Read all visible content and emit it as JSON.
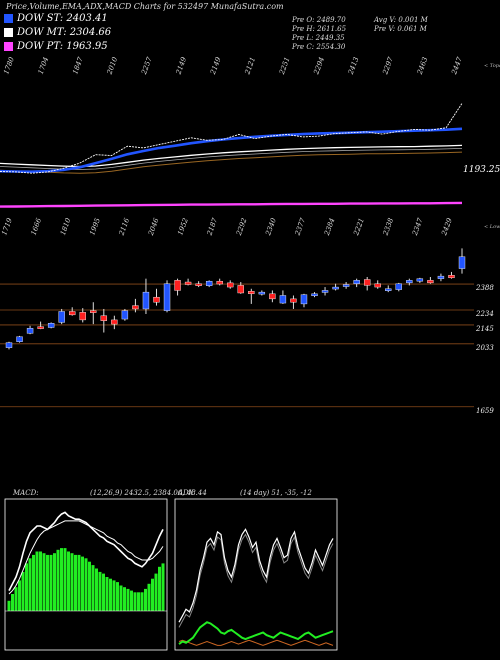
{
  "header": {
    "title": "Price,Volume,EMA,ADX,MACD Charts for 532497 MunafaSutra.com"
  },
  "legend": [
    {
      "label": "DOW ST: 2403.41",
      "color": "#2255ff"
    },
    {
      "label": "DOW MT: 2304.66",
      "color": "#ffffff"
    },
    {
      "label": "DOW PT: 1963.95",
      "color": "#ff44ff"
    }
  ],
  "info": {
    "col1": [
      "Pre   O: 2489.70",
      "Pre   H: 2611.65",
      "Pre   L: 2449.35",
      "Pre   C: 2554.30"
    ],
    "col2": [
      "Avg V: 0.001 M",
      "Pre   V: 0.061 M"
    ]
  },
  "colors": {
    "up": "#2255ff",
    "down": "#ff2020",
    "bg": "#000000",
    "macd_bar": "#22ee22",
    "adx_plus": "#22ee22",
    "adx_minus": "#cc6622",
    "gridline": "#8a4a1a"
  },
  "chart_data": [
    {
      "type": "line",
      "name": "ema-panel",
      "top_labels": [
        "1780",
        "1704",
        "1847",
        "2010",
        "2257",
        "2149",
        "2149",
        "2121",
        "2251",
        "2294",
        "2413",
        "2297",
        "2463",
        "2447"
      ],
      "right_label": "< Topa",
      "price_label": "1193.25",
      "series": [
        {
          "name": "DOW ST",
          "color": "#2255ff",
          "values": [
            2152,
            2150,
            2149,
            2152,
            2160,
            2175,
            2200,
            2225,
            2252,
            2272,
            2290,
            2303,
            2318,
            2330,
            2340,
            2348,
            2356,
            2362,
            2367,
            2372,
            2376,
            2378,
            2380,
            2383,
            2386,
            2389,
            2392,
            2395,
            2398,
            2403
          ]
        },
        {
          "name": "DOW MT",
          "color": "#ffffff",
          "values": [
            2198,
            2194,
            2190,
            2186,
            2182,
            2180,
            2183,
            2192,
            2205,
            2218,
            2228,
            2237,
            2246,
            2254,
            2261,
            2267,
            2272,
            2277,
            2282,
            2286,
            2289,
            2291,
            2293,
            2295,
            2296,
            2297,
            2298,
            2300,
            2302,
            2305
          ]
        },
        {
          "name": "DOW PT",
          "color": "#ff44ff",
          "values": [
            1942,
            1943,
            1944,
            1945,
            1946,
            1947,
            1948,
            1949,
            1950,
            1951,
            1952,
            1953,
            1954,
            1954,
            1955,
            1956,
            1956,
            1957,
            1958,
            1958,
            1959,
            1959,
            1960,
            1960,
            1961,
            1961,
            1962,
            1962,
            1963,
            1964
          ]
        }
      ],
      "close": [
        2150,
        2148,
        2140,
        2148,
        2170,
        2200,
        2250,
        2245,
        2300,
        2290,
        2310,
        2330,
        2350,
        2335,
        2340,
        2370,
        2345,
        2360,
        2370,
        2355,
        2360,
        2375,
        2380,
        2385,
        2372,
        2388,
        2400,
        2395,
        2410,
        2554
      ]
    },
    {
      "type": "candlestick",
      "name": "price-panel",
      "top_labels": [
        "1719",
        "1666",
        "1810",
        "1995",
        "2116",
        "2046",
        "1952",
        "2187",
        "2292",
        "2340",
        "2377",
        "2384",
        "2221",
        "2338",
        "2347",
        "2429"
      ],
      "right_label": "< Lowes",
      "levels": [
        2388,
        2234,
        2145,
        2033,
        1659
      ],
      "ylim": [
        1610,
        2620
      ],
      "candles": [
        {
          "o": 2010,
          "h": 2045,
          "l": 2000,
          "c": 2040
        },
        {
          "o": 2045,
          "h": 2080,
          "l": 2040,
          "c": 2075
        },
        {
          "o": 2095,
          "h": 2140,
          "l": 2090,
          "c": 2125
        },
        {
          "o": 2135,
          "h": 2165,
          "l": 2120,
          "c": 2130
        },
        {
          "o": 2130,
          "h": 2160,
          "l": 2125,
          "c": 2155
        },
        {
          "o": 2160,
          "h": 2240,
          "l": 2150,
          "c": 2225
        },
        {
          "o": 2225,
          "h": 2250,
          "l": 2200,
          "c": 2205
        },
        {
          "o": 2220,
          "h": 2245,
          "l": 2160,
          "c": 2175
        },
        {
          "o": 2230,
          "h": 2280,
          "l": 2150,
          "c": 2225
        },
        {
          "o": 2200,
          "h": 2240,
          "l": 2100,
          "c": 2170
        },
        {
          "o": 2175,
          "h": 2200,
          "l": 2120,
          "c": 2150
        },
        {
          "o": 2180,
          "h": 2240,
          "l": 2170,
          "c": 2230
        },
        {
          "o": 2260,
          "h": 2300,
          "l": 2220,
          "c": 2240
        },
        {
          "o": 2240,
          "h": 2420,
          "l": 2210,
          "c": 2340
        },
        {
          "o": 2310,
          "h": 2360,
          "l": 2260,
          "c": 2280
        },
        {
          "o": 2230,
          "h": 2410,
          "l": 2220,
          "c": 2390
        },
        {
          "o": 2410,
          "h": 2420,
          "l": 2320,
          "c": 2350
        },
        {
          "o": 2400,
          "h": 2420,
          "l": 2380,
          "c": 2385
        },
        {
          "o": 2390,
          "h": 2405,
          "l": 2370,
          "c": 2380
        },
        {
          "o": 2378,
          "h": 2410,
          "l": 2370,
          "c": 2405
        },
        {
          "o": 2405,
          "h": 2420,
          "l": 2380,
          "c": 2388
        },
        {
          "o": 2395,
          "h": 2410,
          "l": 2360,
          "c": 2370
        },
        {
          "o": 2380,
          "h": 2400,
          "l": 2330,
          "c": 2335
        },
        {
          "o": 2345,
          "h": 2360,
          "l": 2270,
          "c": 2330
        },
        {
          "o": 2335,
          "h": 2350,
          "l": 2320,
          "c": 2340
        },
        {
          "o": 2330,
          "h": 2350,
          "l": 2280,
          "c": 2300
        },
        {
          "o": 2275,
          "h": 2350,
          "l": 2270,
          "c": 2320
        },
        {
          "o": 2300,
          "h": 2320,
          "l": 2240,
          "c": 2280
        },
        {
          "o": 2270,
          "h": 2330,
          "l": 2250,
          "c": 2325
        },
        {
          "o": 2325,
          "h": 2340,
          "l": 2310,
          "c": 2330
        },
        {
          "o": 2345,
          "h": 2370,
          "l": 2320,
          "c": 2350
        },
        {
          "o": 2365,
          "h": 2390,
          "l": 2350,
          "c": 2370
        },
        {
          "o": 2375,
          "h": 2400,
          "l": 2360,
          "c": 2385
        },
        {
          "o": 2390,
          "h": 2420,
          "l": 2370,
          "c": 2410
        },
        {
          "o": 2415,
          "h": 2430,
          "l": 2350,
          "c": 2380
        },
        {
          "o": 2390,
          "h": 2410,
          "l": 2360,
          "c": 2370
        },
        {
          "o": 2350,
          "h": 2380,
          "l": 2340,
          "c": 2360
        },
        {
          "o": 2355,
          "h": 2395,
          "l": 2345,
          "c": 2390
        },
        {
          "o": 2395,
          "h": 2420,
          "l": 2380,
          "c": 2410
        },
        {
          "o": 2405,
          "h": 2425,
          "l": 2395,
          "c": 2420
        },
        {
          "o": 2410,
          "h": 2430,
          "l": 2390,
          "c": 2395
        },
        {
          "o": 2420,
          "h": 2450,
          "l": 2405,
          "c": 2435
        },
        {
          "o": 2440,
          "h": 2460,
          "l": 2420,
          "c": 2425
        },
        {
          "o": 2480,
          "h": 2600,
          "l": 2450,
          "c": 2550
        }
      ]
    },
    {
      "type": "bar",
      "name": "macd-panel",
      "title": "MACD:",
      "params": "(12,26,9) 2432.5, 2384.06, 48.44",
      "macd": [
        12,
        16,
        20,
        26,
        34,
        41,
        46,
        48,
        50,
        50,
        49,
        48,
        50,
        52,
        55,
        57,
        58,
        56,
        55,
        54,
        54,
        53,
        52,
        50,
        48,
        46,
        44,
        43,
        41,
        40,
        39,
        37,
        35,
        33,
        31,
        30,
        28,
        27,
        26,
        28,
        31,
        34,
        39,
        44,
        48
      ],
      "signal": [
        10,
        12,
        15,
        19,
        24,
        29,
        34,
        38,
        42,
        45,
        47,
        48,
        49,
        50,
        51,
        52,
        53,
        53,
        53,
        53,
        53,
        52,
        51,
        50,
        49,
        48,
        47,
        46,
        44,
        43,
        42,
        40,
        39,
        37,
        35,
        34,
        32,
        31,
        30,
        30,
        30,
        31,
        33,
        35,
        38
      ],
      "histogram": [
        6,
        10,
        14,
        18,
        23,
        28,
        31,
        33,
        35,
        35,
        34,
        33,
        33,
        34,
        36,
        37,
        37,
        35,
        34,
        33,
        33,
        32,
        31,
        29,
        27,
        25,
        23,
        22,
        20,
        19,
        18,
        17,
        15,
        14,
        13,
        12,
        11,
        11,
        11,
        13,
        16,
        19,
        22,
        26,
        28
      ],
      "ylim": [
        -20,
        60
      ]
    },
    {
      "type": "line",
      "name": "adx-panel",
      "title": "ADX",
      "params": "(14 day) 51, -35, -12",
      "series": [
        {
          "name": "ADX",
          "color": "#ffffff",
          "values": [
            20,
            25,
            30,
            28,
            35,
            45,
            60,
            70,
            82,
            85,
            80,
            90,
            88,
            70,
            60,
            55,
            65,
            80,
            88,
            92,
            86,
            78,
            82,
            68,
            60,
            55,
            70,
            80,
            85,
            78,
            70,
            72,
            85,
            90,
            78,
            70,
            62,
            58,
            66,
            76,
            70,
            64,
            72,
            80,
            85
          ]
        },
        {
          "name": "+DI",
          "color": "#22ee22",
          "values": [
            3,
            5,
            4,
            6,
            8,
            12,
            16,
            18,
            20,
            19,
            17,
            15,
            12,
            11,
            13,
            14,
            12,
            10,
            8,
            7,
            8,
            9,
            10,
            11,
            12,
            10,
            9,
            8,
            10,
            12,
            11,
            10,
            9,
            8,
            7,
            9,
            11,
            12,
            10,
            8,
            9,
            10,
            11,
            12,
            13
          ]
        },
        {
          "name": "-DI",
          "color": "#cc6622",
          "values": [
            5,
            6,
            5,
            4,
            3,
            2,
            3,
            4,
            5,
            4,
            3,
            2,
            2,
            3,
            4,
            5,
            4,
            3,
            4,
            5,
            6,
            5,
            4,
            3,
            2,
            3,
            4,
            5,
            6,
            5,
            4,
            3,
            2,
            3,
            4,
            5,
            6,
            5,
            4,
            3,
            2,
            3,
            4,
            3,
            2
          ]
        }
      ],
      "ylim": [
        0,
        100
      ]
    }
  ]
}
